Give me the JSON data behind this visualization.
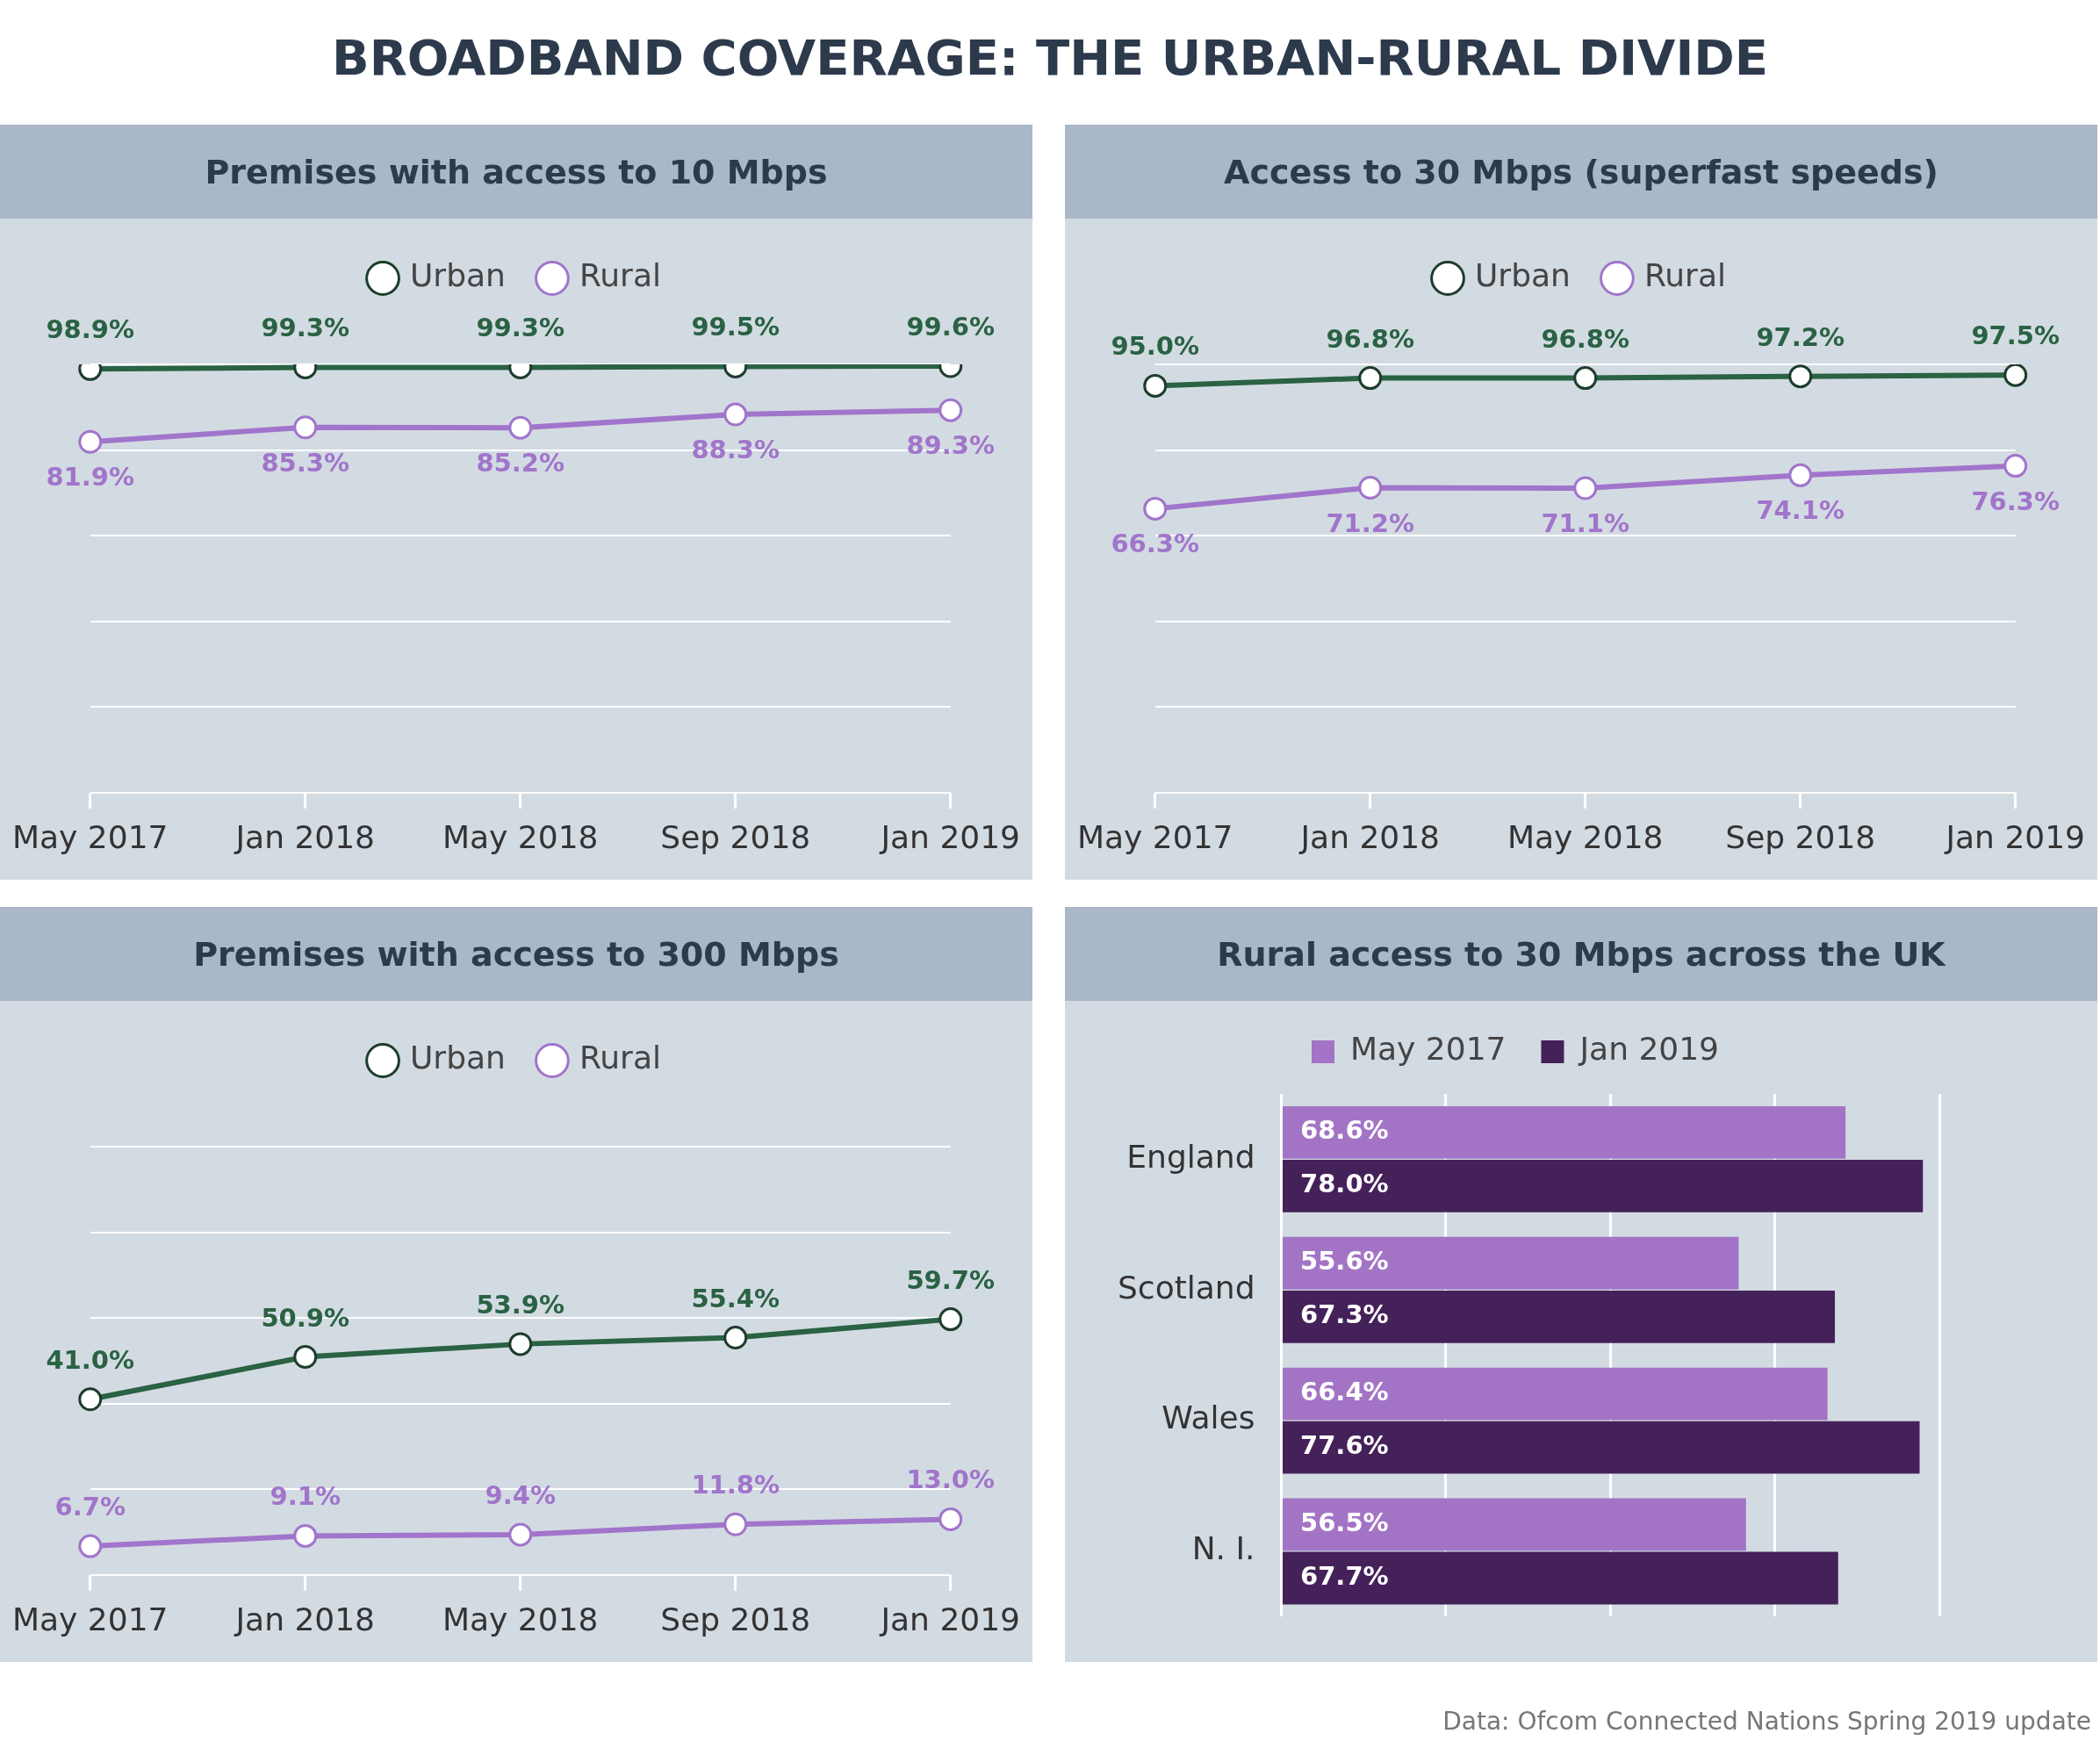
{
  "chart_data": [
    {
      "type": "line",
      "title": "Premises with access to 10 Mbps",
      "categories": [
        "May 2017",
        "Jan 2018",
        "May 2018",
        "Sep 2018",
        "Jan 2019"
      ],
      "series": [
        {
          "name": "Urban",
          "color": "#2a6244",
          "values": [
            98.9,
            99.3,
            99.3,
            99.5,
            99.6
          ],
          "value_labels": [
            "98.9%",
            "99.3%",
            "99.3%",
            "99.5%",
            "99.6%"
          ]
        },
        {
          "name": "Rural",
          "color": "#a175cb",
          "values": [
            81.9,
            85.3,
            85.2,
            88.3,
            89.3
          ],
          "value_labels": [
            "81.9%",
            "85.3%",
            "85.2%",
            "88.3%",
            "89.3%"
          ]
        }
      ],
      "ylim": [
        0,
        100
      ],
      "yticks": [
        {
          "value": 0,
          "label": null
        },
        {
          "value": 20,
          "label": null
        },
        {
          "value": 40,
          "label": null
        },
        {
          "value": 60,
          "label": null
        },
        {
          "value": 80,
          "label": null
        },
        {
          "value": 100,
          "label": null
        }
      ],
      "grid": "y",
      "legend": "top",
      "marker": "circle",
      "tick_labels": "x",
      "annotations": [
        "BROADBAND COVERAGE: THE URBAN-RURAL DIVIDE"
      ]
    },
    {
      "type": "line",
      "title": "Access to 30 Mbps (superfast speeds)",
      "categories": [
        "May 2017",
        "Jan 2018",
        "May 2018",
        "Sep 2018",
        "Jan 2019"
      ],
      "series": [
        {
          "name": "Urban",
          "color": "#2a6244",
          "values": [
            95.0,
            96.8,
            96.8,
            97.2,
            97.5
          ],
          "value_labels": [
            "95.0%",
            "96.8%",
            "96.8%",
            "97.2%",
            "97.5%"
          ]
        },
        {
          "name": "Rural",
          "color": "#a175cb",
          "values": [
            66.3,
            71.2,
            71.1,
            74.1,
            76.3
          ],
          "value_labels": [
            "66.3%",
            "71.2%",
            "71.1%",
            "74.1%",
            "76.3%"
          ]
        }
      ],
      "ylim": [
        0,
        100
      ],
      "yticks": [
        {
          "value": 0,
          "label": null
        },
        {
          "value": 20,
          "label": null
        },
        {
          "value": 40,
          "label": null
        },
        {
          "value": 60,
          "label": null
        },
        {
          "value": 80,
          "label": null
        },
        {
          "value": 100,
          "label": null
        }
      ],
      "grid": "y",
      "legend": "top",
      "marker": "circle",
      "tick_labels": "x"
    },
    {
      "type": "line",
      "title": "Premises with access to 300 Mbps",
      "categories": [
        "May 2017",
        "Jan 2018",
        "May 2018",
        "Sep 2018",
        "Jan 2019"
      ],
      "series": [
        {
          "name": "Urban",
          "color": "#2a6244",
          "values": [
            41.0,
            50.9,
            53.9,
            55.4,
            59.7
          ],
          "value_labels": [
            "41.0%",
            "50.9%",
            "53.9%",
            "55.4%",
            "59.7%"
          ]
        },
        {
          "name": "Rural",
          "color": "#a175cb",
          "values": [
            6.7,
            9.1,
            9.4,
            11.8,
            13.0
          ],
          "value_labels": [
            "6.7%",
            "9.1%",
            "9.4%",
            "11.8%",
            "13.0%"
          ]
        }
      ],
      "ylim": [
        0,
        100
      ],
      "yticks": [
        {
          "value": 0,
          "label": null
        },
        {
          "value": 20,
          "label": null
        },
        {
          "value": 40,
          "label": null
        },
        {
          "value": 60,
          "label": null
        },
        {
          "value": 80,
          "label": null
        },
        {
          "value": 100,
          "label": null
        }
      ],
      "grid": "y",
      "legend": "top",
      "marker": "circle",
      "tick_labels": "x"
    },
    {
      "type": "bar",
      "orientation": "horizontal",
      "title": "Rural access to 30 Mbps across the UK",
      "categories": [
        "England",
        "Scotland",
        "Wales",
        "N. I."
      ],
      "series": [
        {
          "name": "May 2017",
          "color": "#a374c6",
          "values": [
            68.6,
            55.6,
            66.4,
            56.5
          ],
          "value_labels": [
            "68.6%",
            "55.6%",
            "66.4%",
            "56.5%"
          ]
        },
        {
          "name": "Jan 2019",
          "color": "#45215a",
          "values": [
            78.0,
            67.3,
            77.6,
            67.7
          ],
          "value_labels": [
            "78.0%",
            "67.3%",
            "77.6%",
            "67.7%"
          ]
        }
      ],
      "xlim": [
        0,
        80
      ],
      "xticks": [
        {
          "value": 0,
          "label": null
        },
        {
          "value": 20,
          "label": null
        },
        {
          "value": 40,
          "label": null
        },
        {
          "value": 60,
          "label": null
        },
        {
          "value": 80,
          "label": null
        }
      ],
      "grid": "x",
      "legend": "top",
      "tick_labels": "y",
      "annotations": [
        "Data: Ofcom Connected Nations Spring 2019 update"
      ]
    }
  ]
}
